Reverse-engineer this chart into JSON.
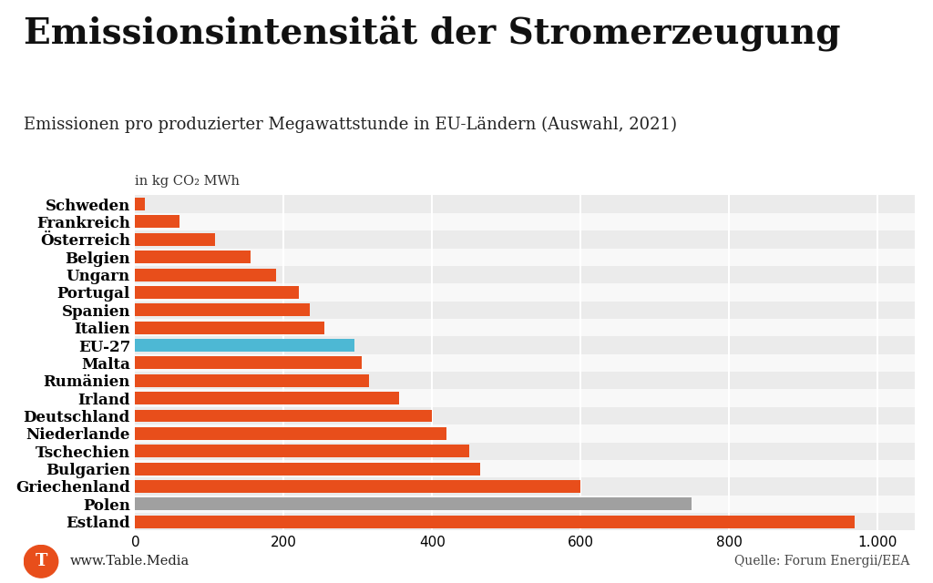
{
  "title": "Emissionsintensität der Stromerzeugung",
  "subtitle": "Emissionen pro produzierter Megawattstunde in EU-Ländern (Auswahl, 2021)",
  "unit_label": "in kg CO₂ MWh",
  "categories": [
    "Schweden",
    "Frankreich",
    "Österreich",
    "Belgien",
    "Ungarn",
    "Portugal",
    "Spanien",
    "Italien",
    "EU-27",
    "Malta",
    "Rumänien",
    "Irland",
    "Deutschland",
    "Niederlande",
    "Tschechien",
    "Bulgarien",
    "Griechenland",
    "Polen",
    "Estland"
  ],
  "values": [
    13,
    60,
    108,
    155,
    190,
    220,
    235,
    255,
    295,
    305,
    315,
    355,
    400,
    420,
    450,
    465,
    600,
    750,
    970
  ],
  "bar_colors": [
    "#e84e1b",
    "#e84e1b",
    "#e84e1b",
    "#e84e1b",
    "#e84e1b",
    "#e84e1b",
    "#e84e1b",
    "#e84e1b",
    "#4db8d4",
    "#e84e1b",
    "#e84e1b",
    "#e84e1b",
    "#e84e1b",
    "#e84e1b",
    "#e84e1b",
    "#e84e1b",
    "#e84e1b",
    "#a0a0a0",
    "#e84e1b"
  ],
  "row_bg_colors": [
    "#ebebeb",
    "#f8f8f8"
  ],
  "xlim": [
    0,
    1050
  ],
  "xticks": [
    0,
    200,
    400,
    600,
    800,
    1000
  ],
  "xtick_labels": [
    "0",
    "200",
    "400",
    "600",
    "800",
    "1.000"
  ],
  "background_color": "#ffffff",
  "title_fontsize": 28,
  "subtitle_fontsize": 13,
  "label_fontsize": 12,
  "tick_fontsize": 11,
  "source_text": "Quelle: Forum Energii/EEA",
  "logo_text": "www.Table.Media",
  "bar_height": 0.72
}
